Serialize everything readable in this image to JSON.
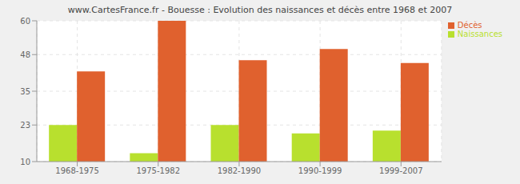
{
  "chart_data": {
    "type": "bar",
    "title": "www.CartesFrance.fr - Bouesse : Evolution des naissances et décès entre 1968 et 2007",
    "categories": [
      "1968-1975",
      "1975-1982",
      "1982-1990",
      "1990-1999",
      "1999-2007"
    ],
    "series": [
      {
        "name": "Naissances",
        "color": "#b8e02e",
        "values": [
          23,
          13,
          23,
          20,
          21
        ]
      },
      {
        "name": "Décès",
        "color": "#e0612e",
        "values": [
          42,
          60,
          46,
          50,
          45
        ]
      }
    ],
    "ylim": [
      10,
      60
    ],
    "yticks": [
      10,
      23,
      35,
      48,
      60
    ],
    "grid": true,
    "legend": "top-right"
  }
}
